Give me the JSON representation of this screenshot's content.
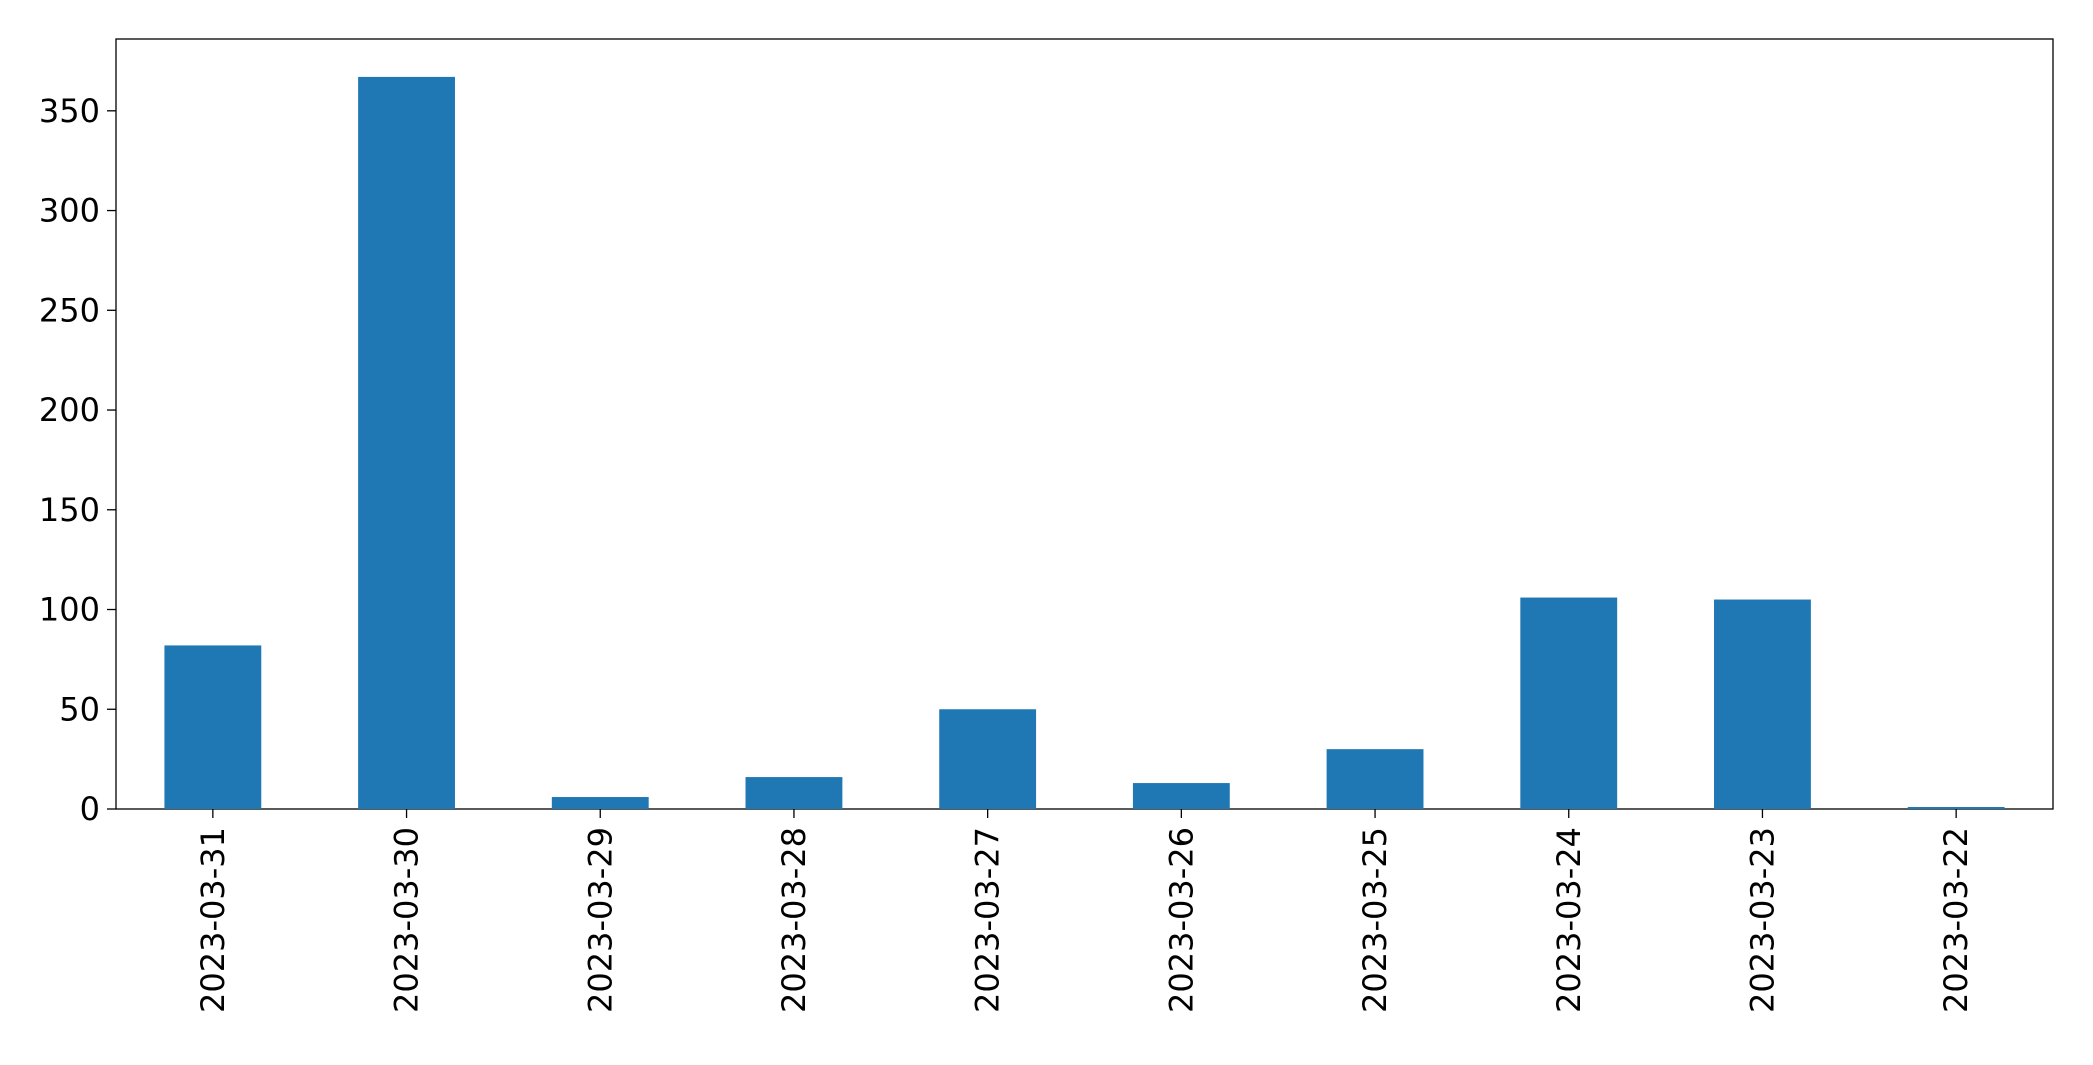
{
  "chart_data": {
    "type": "bar",
    "categories": [
      "2023-03-31",
      "2023-03-30",
      "2023-03-29",
      "2023-03-28",
      "2023-03-27",
      "2023-03-26",
      "2023-03-25",
      "2023-03-24",
      "2023-03-23",
      "2023-03-22"
    ],
    "values": [
      82,
      367,
      6,
      16,
      50,
      13,
      30,
      106,
      105,
      1
    ],
    "color": "#1f77b4",
    "ylim": [
      0,
      386
    ],
    "yticks": [
      0,
      50,
      100,
      150,
      200,
      250,
      300,
      350
    ],
    "grid": false
  }
}
